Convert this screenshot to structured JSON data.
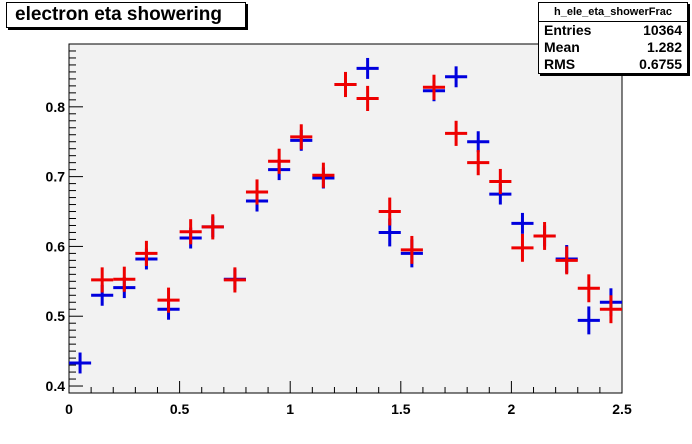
{
  "chart_data": {
    "type": "scatter",
    "title": "electron eta showering",
    "xlim": [
      0,
      2.5
    ],
    "ylim": [
      0.39,
      0.89
    ],
    "x_ticks": [
      "0",
      "0.5",
      "1",
      "1.5",
      "2",
      "2.5"
    ],
    "y_ticks": [
      "0.4",
      "0.5",
      "0.6",
      "0.7",
      "0.8"
    ],
    "x_tick_values": [
      0,
      0.5,
      1,
      1.5,
      2,
      2.5
    ],
    "y_tick_values": [
      0.4,
      0.5,
      0.6,
      0.7,
      0.8
    ],
    "grid": false,
    "series": [
      {
        "color": "#0000dd",
        "x": [
          0.05,
          0.15,
          0.25,
          0.35,
          0.45,
          0.55,
          0.65,
          0.75,
          0.85,
          0.95,
          1.05,
          1.15,
          1.25,
          1.35,
          1.45,
          1.55,
          1.65,
          1.75,
          1.85,
          1.95,
          2.05,
          2.15,
          2.25,
          2.35,
          2.45
        ],
        "y": [
          0.433,
          0.53,
          0.541,
          0.582,
          0.51,
          0.612,
          0.628,
          0.553,
          0.665,
          0.71,
          0.752,
          0.698,
          0.832,
          0.855,
          0.62,
          0.59,
          0.823,
          0.843,
          0.75,
          0.675,
          0.633,
          0.615,
          0.582,
          0.494,
          0.52
        ],
        "yerr": [
          0.015,
          0.015,
          0.015,
          0.015,
          0.015,
          0.015,
          0.015,
          0.015,
          0.015,
          0.015,
          0.015,
          0.015,
          0.015,
          0.015,
          0.02,
          0.02,
          0.015,
          0.015,
          0.015,
          0.015,
          0.015,
          0.015,
          0.02,
          0.02,
          0.02
        ]
      },
      {
        "color": "#ee0000",
        "x": [
          0.05,
          0.15,
          0.25,
          0.35,
          0.45,
          0.55,
          0.65,
          0.75,
          0.85,
          0.95,
          1.05,
          1.15,
          1.25,
          1.35,
          1.45,
          1.55,
          1.65,
          1.75,
          1.85,
          1.95,
          2.05,
          2.15,
          2.25,
          2.35,
          2.45
        ],
        "y": [
          null,
          0.552,
          0.553,
          0.59,
          0.523,
          0.621,
          0.628,
          0.552,
          0.678,
          0.722,
          0.757,
          0.702,
          0.832,
          0.812,
          0.65,
          0.595,
          0.828,
          0.762,
          0.72,
          0.693,
          0.598,
          0.615,
          0.58,
          0.54,
          0.51
        ],
        "yerr": [
          0,
          0.018,
          0.018,
          0.018,
          0.018,
          0.018,
          0.018,
          0.018,
          0.018,
          0.018,
          0.018,
          0.018,
          0.018,
          0.018,
          0.02,
          0.02,
          0.018,
          0.018,
          0.018,
          0.018,
          0.02,
          0.02,
          0.02,
          0.02,
          0.02
        ]
      }
    ],
    "stats": {
      "name": "h_ele_eta_showerFrac",
      "entries_label": "Entries",
      "entries": "10364",
      "mean_label": "Mean",
      "mean": "1.282",
      "rms_label": "RMS",
      "rms": "0.6755"
    }
  }
}
